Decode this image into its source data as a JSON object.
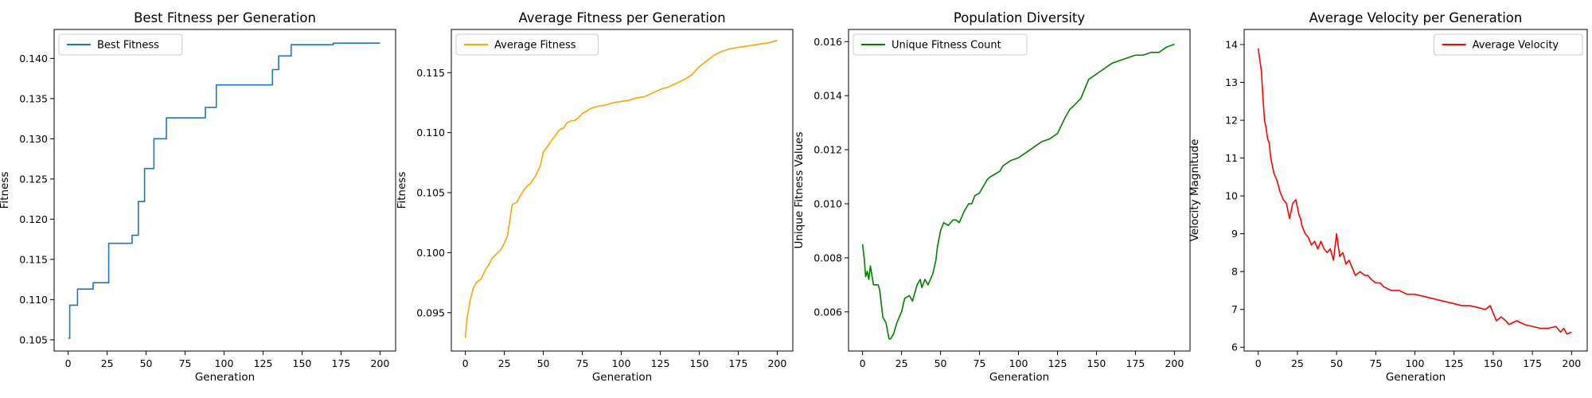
{
  "chart_data": [
    {
      "type": "line",
      "title": "Best Fitness per Generation",
      "xlabel": "Generation",
      "ylabel": "Fitness",
      "xlim": [
        -9,
        210
      ],
      "ylim": [
        0.1036,
        0.1436
      ],
      "xticks": [
        0,
        25,
        50,
        75,
        100,
        125,
        150,
        175,
        200
      ],
      "yticks": [
        0.105,
        0.11,
        0.115,
        0.12,
        0.125,
        0.13,
        0.135,
        0.14
      ],
      "ytick_labels": [
        "0.105",
        "0.110",
        "0.115",
        "0.120",
        "0.125",
        "0.130",
        "0.135",
        "0.140"
      ],
      "legend": "top-left",
      "grid": false,
      "series": [
        {
          "name": "Best Fitness",
          "color": "#1f77b4",
          "step": true,
          "x": [
            0,
            1,
            6,
            16,
            26,
            41,
            45,
            49,
            55,
            63,
            88,
            95,
            131,
            135,
            143,
            170,
            200
          ],
          "y": [
            0.1052,
            0.1093,
            0.1113,
            0.1121,
            0.117,
            0.118,
            0.1222,
            0.1263,
            0.13,
            0.1326,
            0.1339,
            0.1367,
            0.1386,
            0.1403,
            0.1417,
            0.1419,
            0.1419
          ]
        }
      ]
    },
    {
      "type": "line",
      "title": "Average Fitness per Generation",
      "xlabel": "Generation",
      "ylabel": "Fitness",
      "xlim": [
        -9,
        210
      ],
      "ylim": [
        0.0918,
        0.1186
      ],
      "xticks": [
        0,
        25,
        50,
        75,
        100,
        125,
        150,
        175,
        200
      ],
      "yticks": [
        0.095,
        0.1,
        0.105,
        0.11,
        0.115
      ],
      "ytick_labels": [
        "0.095",
        "0.100",
        "0.105",
        "0.110",
        "0.115"
      ],
      "legend": "top-left",
      "grid": false,
      "series": [
        {
          "name": "Average Fitness",
          "color": "#ffa500",
          "x": [
            0,
            1,
            2,
            3,
            5,
            7,
            10,
            13,
            15,
            17,
            20,
            23,
            25,
            27,
            30,
            33,
            35,
            38,
            40,
            42,
            45,
            48,
            50,
            53,
            55,
            58,
            60,
            63,
            65,
            68,
            70,
            73,
            75,
            78,
            80,
            85,
            90,
            95,
            100,
            105,
            110,
            115,
            120,
            125,
            130,
            135,
            140,
            145,
            150,
            155,
            160,
            165,
            170,
            175,
            180,
            185,
            190,
            195,
            200
          ],
          "y": [
            0.0929,
            0.0945,
            0.0952,
            0.096,
            0.097,
            0.0975,
            0.0978,
            0.0986,
            0.099,
            0.0995,
            0.0999,
            0.1003,
            0.1008,
            0.1014,
            0.104,
            0.1042,
            0.1047,
            0.1053,
            0.1056,
            0.1058,
            0.1064,
            0.1072,
            0.1084,
            0.1089,
            0.1093,
            0.1098,
            0.1102,
            0.1104,
            0.1108,
            0.111,
            0.111,
            0.1113,
            0.1116,
            0.1118,
            0.112,
            0.1122,
            0.1123,
            0.1125,
            0.1126,
            0.1127,
            0.1129,
            0.113,
            0.1133,
            0.1136,
            0.1138,
            0.1141,
            0.1144,
            0.1148,
            0.1155,
            0.116,
            0.1165,
            0.1168,
            0.117,
            0.1171,
            0.1172,
            0.1173,
            0.1174,
            0.1175,
            0.1177
          ]
        }
      ]
    },
    {
      "type": "line",
      "title": "Population Diversity",
      "xlabel": "Generation",
      "ylabel": "Unique Fitness Values",
      "xlim": [
        -9,
        210
      ],
      "ylim": [
        0.00455,
        0.01645
      ],
      "xticks": [
        0,
        25,
        50,
        75,
        100,
        125,
        150,
        175,
        200
      ],
      "yticks": [
        0.006,
        0.008,
        0.01,
        0.012,
        0.014,
        0.016
      ],
      "ytick_labels": [
        "0.006",
        "0.008",
        "0.010",
        "0.012",
        "0.014",
        "0.016"
      ],
      "legend": "top-left",
      "grid": false,
      "series": [
        {
          "name": "Unique Fitness Count",
          "color": "#008000",
          "x": [
            0,
            1,
            2,
            3,
            4,
            5,
            7,
            10,
            11,
            13,
            15,
            16,
            17,
            18,
            20,
            22,
            25,
            27,
            30,
            32,
            35,
            37,
            38,
            40,
            42,
            45,
            47,
            48,
            50,
            52,
            55,
            58,
            60,
            62,
            65,
            68,
            70,
            72,
            75,
            78,
            80,
            82,
            85,
            88,
            90,
            95,
            100,
            105,
            110,
            115,
            120,
            125,
            130,
            133,
            135,
            140,
            145,
            150,
            155,
            160,
            165,
            170,
            175,
            180,
            185,
            190,
            195,
            200
          ],
          "y": [
            0.0085,
            0.008,
            0.0073,
            0.0075,
            0.0072,
            0.0077,
            0.007,
            0.007,
            0.0068,
            0.0058,
            0.0056,
            0.0053,
            0.005,
            0.005,
            0.0052,
            0.0056,
            0.006,
            0.0065,
            0.0066,
            0.0064,
            0.007,
            0.0072,
            0.0069,
            0.0072,
            0.007,
            0.0074,
            0.0079,
            0.0084,
            0.009,
            0.0093,
            0.0092,
            0.0094,
            0.0094,
            0.0093,
            0.0097,
            0.01,
            0.01,
            0.0103,
            0.0104,
            0.0107,
            0.0109,
            0.011,
            0.0111,
            0.0112,
            0.0114,
            0.0116,
            0.0117,
            0.0119,
            0.0121,
            0.0123,
            0.0124,
            0.0126,
            0.0132,
            0.0135,
            0.0136,
            0.0139,
            0.0146,
            0.0148,
            0.015,
            0.0152,
            0.0153,
            0.0154,
            0.0155,
            0.0155,
            0.0156,
            0.0156,
            0.0158,
            0.0159
          ]
        }
      ]
    },
    {
      "type": "line",
      "title": "Average Velocity per Generation",
      "xlabel": "Generation",
      "ylabel": "Velocity Magnitude",
      "xlim": [
        -9,
        210
      ],
      "ylim": [
        5.9,
        14.4
      ],
      "xticks": [
        0,
        25,
        50,
        75,
        100,
        125,
        150,
        175,
        200
      ],
      "yticks": [
        6,
        7,
        8,
        9,
        10,
        11,
        12,
        13,
        14
      ],
      "ytick_labels": [
        "6",
        "7",
        "8",
        "9",
        "10",
        "11",
        "12",
        "13",
        "14"
      ],
      "legend": "top-right",
      "grid": false,
      "series": [
        {
          "name": "Average Velocity",
          "color": "#ff0000",
          "x": [
            0,
            1,
            2,
            3,
            4,
            5,
            6,
            7,
            8,
            10,
            12,
            14,
            16,
            18,
            20,
            22,
            24,
            25,
            26,
            27,
            28,
            30,
            32,
            34,
            36,
            38,
            40,
            42,
            44,
            46,
            48,
            50,
            51,
            52,
            54,
            56,
            58,
            60,
            62,
            65,
            68,
            70,
            72,
            75,
            78,
            80,
            85,
            90,
            95,
            100,
            105,
            110,
            115,
            120,
            125,
            130,
            135,
            140,
            145,
            148,
            150,
            152,
            155,
            158,
            160,
            165,
            170,
            175,
            180,
            185,
            190,
            193,
            195,
            197,
            200
          ],
          "y": [
            13.9,
            13.6,
            13.3,
            12.6,
            12.0,
            11.8,
            11.5,
            11.4,
            11.0,
            10.6,
            10.4,
            10.1,
            9.9,
            9.8,
            9.4,
            9.8,
            9.9,
            9.7,
            9.5,
            9.4,
            9.2,
            9.0,
            8.9,
            8.7,
            8.8,
            8.6,
            8.8,
            8.6,
            8.5,
            8.6,
            8.3,
            9.0,
            8.7,
            8.4,
            8.5,
            8.2,
            8.3,
            8.1,
            7.9,
            8.0,
            7.9,
            7.9,
            7.8,
            7.7,
            7.7,
            7.6,
            7.5,
            7.5,
            7.4,
            7.4,
            7.35,
            7.3,
            7.25,
            7.2,
            7.15,
            7.1,
            7.1,
            7.05,
            7.0,
            7.1,
            6.9,
            6.7,
            6.8,
            6.7,
            6.6,
            6.7,
            6.6,
            6.55,
            6.5,
            6.5,
            6.55,
            6.4,
            6.5,
            6.35,
            6.4
          ]
        }
      ]
    }
  ]
}
